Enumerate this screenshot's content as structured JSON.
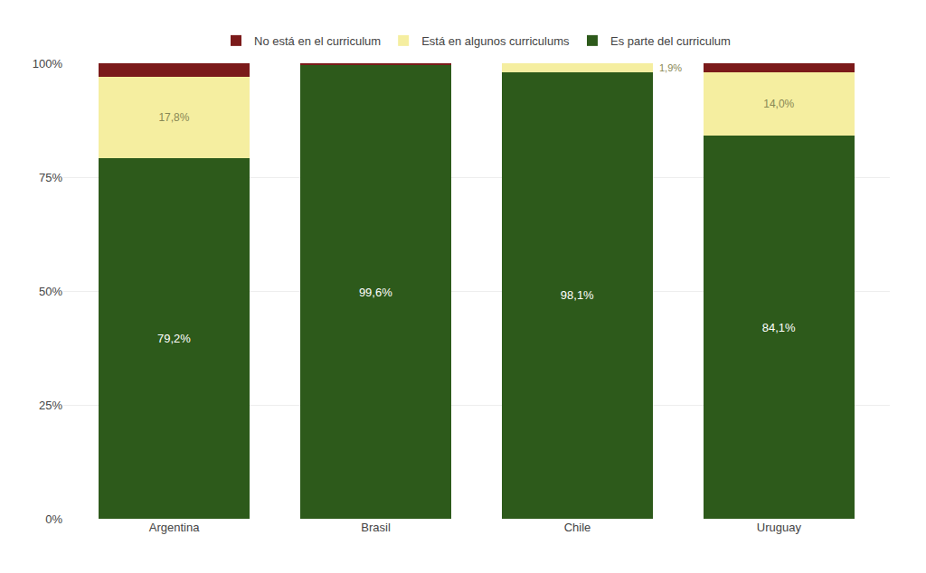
{
  "chart_data": {
    "type": "bar",
    "stacked": true,
    "categories": [
      "Argentina",
      "Brasil",
      "Chile",
      "Uruguay"
    ],
    "series": [
      {
        "name": "Es parte del curriculum",
        "color": "#2d5a1b",
        "values": [
          79.2,
          99.6,
          98.1,
          84.1
        ],
        "value_labels": [
          "79,2%",
          "99,6%",
          "98,1%",
          "84,1%"
        ]
      },
      {
        "name": "Está en algunos curriculums",
        "color": "#f5eea0",
        "values": [
          17.8,
          0.0,
          1.9,
          14.0
        ],
        "value_labels": [
          "17,8%",
          null,
          "1,9%",
          "14,0%"
        ]
      },
      {
        "name": "No está en el curriculum",
        "color": "#7b1a1a",
        "values": [
          3.0,
          0.4,
          0.0,
          1.9
        ]
      }
    ],
    "ylim": [
      0,
      100
    ],
    "yticks": [
      {
        "value": 0,
        "label": "0%"
      },
      {
        "value": 25,
        "label": "25%"
      },
      {
        "value": 50,
        "label": "50%"
      },
      {
        "value": 75,
        "label": "75%"
      },
      {
        "value": 100,
        "label": "100%"
      }
    ],
    "grid": true,
    "legend": "top",
    "data_labels": true
  }
}
